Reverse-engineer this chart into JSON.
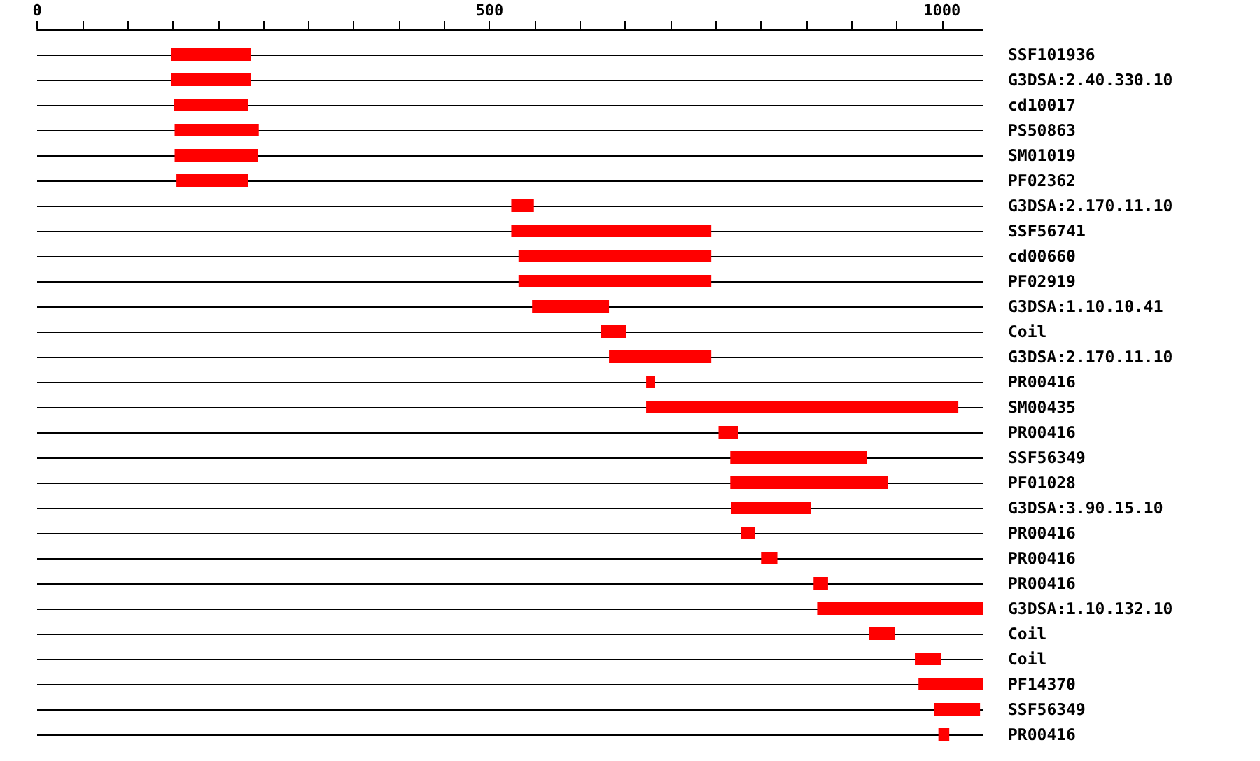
{
  "chart_data": {
    "type": "bar",
    "orientation": "horizontal",
    "categories": [
      "SSF101936",
      "G3DSA:2.40.330.10",
      "cd10017",
      "PS50863",
      "SM01019",
      "PF02362",
      "G3DSA:2.170.11.10",
      "SSF56741",
      "cd00660",
      "PF02919",
      "G3DSA:1.10.10.41",
      "Coil",
      "G3DSA:2.170.11.10",
      "PR00416",
      "SM00435",
      "PR00416",
      "SSF56349",
      "PF01028",
      "G3DSA:3.90.15.10",
      "PR00416",
      "PR00416",
      "PR00416",
      "G3DSA:1.10.132.10",
      "Coil",
      "Coil",
      "PF14370",
      "SSF56349",
      "PR00416"
    ],
    "base": [
      148,
      148,
      151,
      152,
      152,
      154,
      524,
      524,
      532,
      532,
      547,
      623,
      632,
      673,
      673,
      753,
      766,
      766,
      767,
      778,
      800,
      858,
      862,
      919,
      970,
      974,
      991,
      996
    ],
    "values": [
      88,
      88,
      82,
      93,
      92,
      79,
      25,
      221,
      213,
      213,
      85,
      28,
      113,
      10,
      345,
      22,
      151,
      174,
      88,
      15,
      18,
      16,
      183,
      29,
      29,
      71,
      51,
      12
    ],
    "color": "#ff0000",
    "xlim": [
      0,
      1045
    ],
    "xticks": [
      0,
      {
        "value": 50,
        "label": null
      },
      {
        "value": 100,
        "label": null
      },
      {
        "value": 150,
        "label": null
      },
      {
        "value": 200,
        "label": null
      },
      {
        "value": 250,
        "label": null
      },
      {
        "value": 300,
        "label": null
      },
      {
        "value": 350,
        "label": null
      },
      {
        "value": 400,
        "label": null
      },
      {
        "value": 450,
        "label": null
      },
      500,
      {
        "value": 550,
        "label": null
      },
      {
        "value": 600,
        "label": null
      },
      {
        "value": 650,
        "label": null
      },
      {
        "value": 700,
        "label": null
      },
      {
        "value": 750,
        "label": null
      },
      {
        "value": 800,
        "label": null
      },
      {
        "value": 850,
        "label": null
      },
      {
        "value": 900,
        "label": null
      },
      {
        "value": 950,
        "label": null
      },
      1000
    ],
    "grid": "y"
  }
}
